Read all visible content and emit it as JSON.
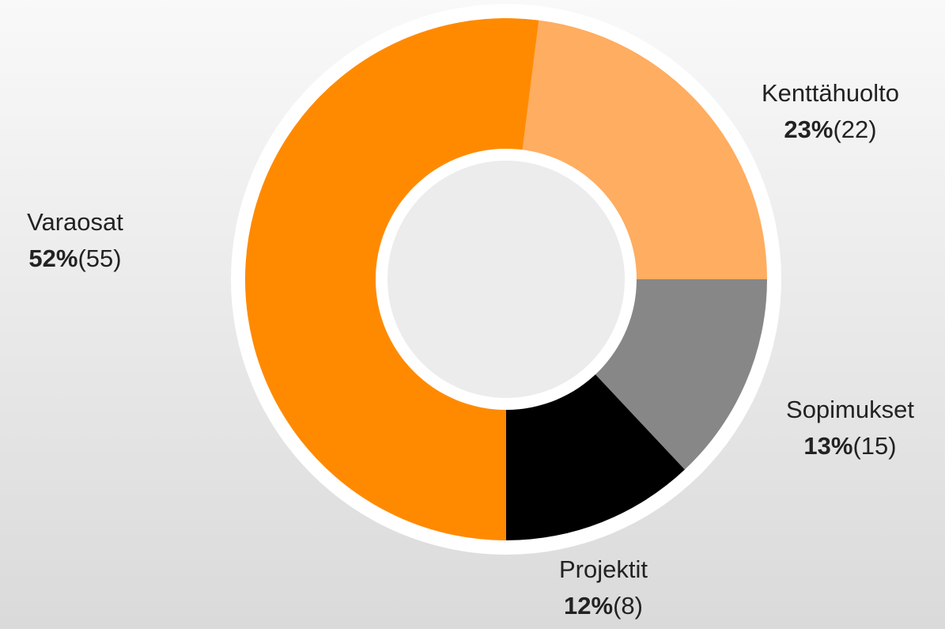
{
  "chart_data": {
    "type": "donut",
    "categories": [
      "Kenttähuolto",
      "Sopimukset",
      "Projektit",
      "Varaosat"
    ],
    "values": [
      23,
      13,
      12,
      52
    ],
    "value_labels": [
      "23%",
      "13%",
      "12%",
      "52%"
    ],
    "count_labels": [
      "(22)",
      "(15)",
      "(8)",
      "(55)"
    ],
    "colors": [
      "#ffad60",
      "#878787",
      "#000000",
      "#ff8a00"
    ]
  }
}
